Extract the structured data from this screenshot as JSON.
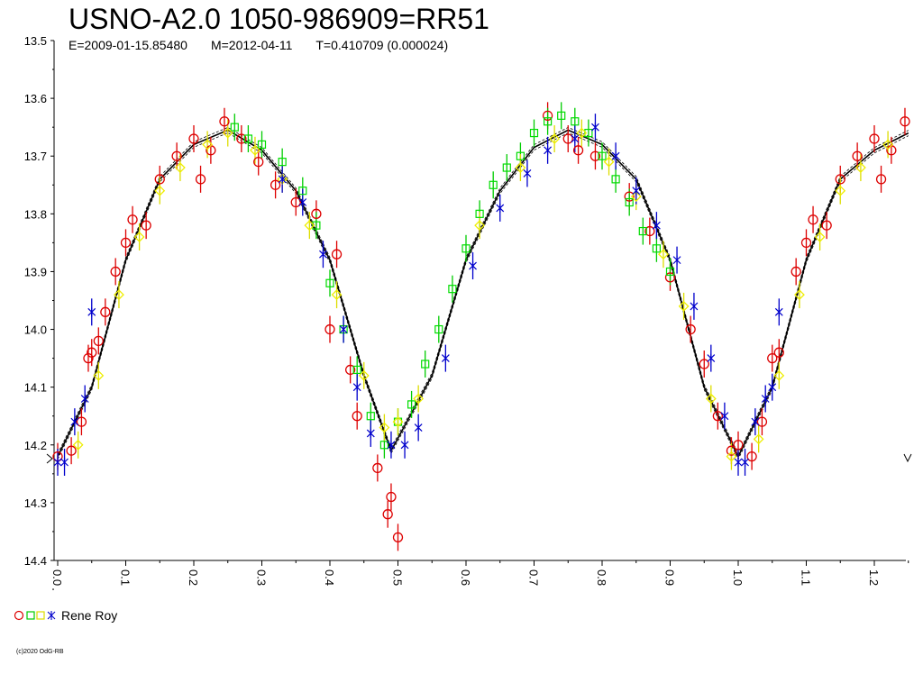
{
  "title": "USNO-A2.0 1050-986909=RR51",
  "subtitle": {
    "epoch": "E=2009-01-15.85480",
    "date": "M=2012-04-11",
    "period": "T=0.410709 (0.000024)"
  },
  "legend": {
    "label": "Rene Roy"
  },
  "copyright": "(c)2020 OdG-RB",
  "colors": {
    "red": "#dd0000",
    "green": "#00dd00",
    "yellow": "#ffff00",
    "blue": "#0000cc",
    "errorbar_red": "#dd0000",
    "errorbar_green": "#00cc00",
    "fit_line": "#000000"
  },
  "markers": {
    "red": "circle",
    "green": "square",
    "yellow": "diamond",
    "blue": "star"
  },
  "chart_data": {
    "type": "scatter",
    "x_ticks": [
      "0.0",
      "0.1",
      "0.2",
      "0.3",
      "0.4",
      "0.5",
      "0.6",
      "0.7",
      "0.8",
      "0.9",
      "1.0",
      "1.1",
      "1.2"
    ],
    "y_ticks": [
      "13.5",
      "13.6",
      "13.7",
      "13.8",
      "13.9",
      "14.0",
      "14.1",
      "14.2",
      "14.3",
      "14.4"
    ],
    "xlim": [
      0.0,
      1.25
    ],
    "ylim": [
      13.5,
      14.4
    ],
    "y_inverted": true,
    "grid": false,
    "fit_curve": {
      "x": [
        0.0,
        0.05,
        0.1,
        0.15,
        0.2,
        0.25,
        0.3,
        0.35,
        0.4,
        0.45,
        0.49,
        0.55,
        0.6,
        0.65,
        0.7,
        0.75,
        0.8,
        0.85,
        0.9,
        0.95,
        1.0,
        1.05,
        1.1,
        1.15,
        1.2,
        1.25
      ],
      "y": [
        14.22,
        14.1,
        13.88,
        13.74,
        13.68,
        13.655,
        13.69,
        13.76,
        13.88,
        14.08,
        14.21,
        14.08,
        13.88,
        13.76,
        13.685,
        13.655,
        13.68,
        13.74,
        13.88,
        14.1,
        14.22,
        14.1,
        13.88,
        13.74,
        13.69,
        13.66
      ]
    },
    "points": {
      "red": {
        "x": [
          0.0,
          0.02,
          0.035,
          0.045,
          0.05,
          0.06,
          0.07,
          0.085,
          0.1,
          0.11,
          0.13,
          0.15,
          0.175,
          0.2,
          0.21,
          0.225,
          0.245,
          0.27,
          0.295,
          0.32,
          0.35,
          0.38,
          0.4,
          0.41,
          0.43,
          0.44,
          0.47,
          0.485,
          0.49,
          0.5,
          0.72,
          0.75,
          0.765,
          0.79,
          0.84,
          0.87,
          0.9,
          0.93,
          0.95,
          0.97,
          0.99,
          1.0,
          1.02,
          1.035,
          1.05,
          1.06,
          1.085,
          1.1,
          1.11,
          1.13,
          1.15,
          1.175,
          1.2,
          1.21,
          1.225,
          1.245
        ],
        "y": [
          14.22,
          14.21,
          14.16,
          14.05,
          14.04,
          14.02,
          13.97,
          13.9,
          13.85,
          13.81,
          13.82,
          13.74,
          13.7,
          13.67,
          13.74,
          13.69,
          13.64,
          13.67,
          13.71,
          13.75,
          13.78,
          13.8,
          14.0,
          13.87,
          14.07,
          14.15,
          14.24,
          14.32,
          14.29,
          14.36,
          13.63,
          13.67,
          13.69,
          13.7,
          13.77,
          13.83,
          13.91,
          14.0,
          14.06,
          14.15,
          14.21,
          14.2,
          14.22,
          14.16,
          14.05,
          14.04,
          13.9,
          13.85,
          13.81,
          13.82,
          13.74,
          13.7,
          13.67,
          13.74,
          13.69,
          13.64
        ]
      },
      "green": {
        "x": [
          0.26,
          0.28,
          0.3,
          0.33,
          0.36,
          0.38,
          0.4,
          0.42,
          0.44,
          0.46,
          0.48,
          0.5,
          0.52,
          0.54,
          0.56,
          0.58,
          0.6,
          0.62,
          0.64,
          0.66,
          0.68,
          0.7,
          0.72,
          0.74,
          0.76,
          0.78,
          0.8,
          0.82,
          0.84,
          0.86,
          0.88,
          0.9
        ],
        "y": [
          13.65,
          13.67,
          13.68,
          13.71,
          13.76,
          13.82,
          13.92,
          14.0,
          14.07,
          14.15,
          14.2,
          14.16,
          14.13,
          14.06,
          14.0,
          13.93,
          13.86,
          13.8,
          13.75,
          13.72,
          13.7,
          13.66,
          13.64,
          13.63,
          13.64,
          13.66,
          13.7,
          13.74,
          13.78,
          13.83,
          13.86,
          13.9
        ]
      },
      "yellow": {
        "x": [
          0.03,
          0.06,
          0.09,
          0.12,
          0.15,
          0.18,
          0.22,
          0.25,
          0.29,
          0.33,
          0.37,
          0.41,
          0.45,
          0.48,
          0.5,
          0.53,
          0.62,
          0.68,
          0.73,
          0.77,
          0.81,
          0.85,
          0.89,
          0.92,
          0.96,
          0.99,
          1.03,
          1.06,
          1.09,
          1.12,
          1.15,
          1.18,
          1.22
        ],
        "y": [
          14.2,
          14.08,
          13.94,
          13.84,
          13.76,
          13.72,
          13.68,
          13.66,
          13.69,
          13.74,
          13.82,
          13.94,
          14.08,
          14.17,
          14.16,
          14.12,
          13.82,
          13.72,
          13.67,
          13.66,
          13.71,
          13.77,
          13.87,
          13.96,
          14.12,
          14.22,
          14.19,
          14.08,
          13.94,
          13.84,
          13.76,
          13.72,
          13.68
        ]
      },
      "blue": {
        "x": [
          0.0,
          0.01,
          0.025,
          0.04,
          0.05,
          0.33,
          0.36,
          0.39,
          0.42,
          0.44,
          0.46,
          0.49,
          0.51,
          0.53,
          0.57,
          0.61,
          0.65,
          0.69,
          0.72,
          0.76,
          0.79,
          0.82,
          0.85,
          0.88,
          0.91,
          0.935,
          0.96,
          0.98,
          1.0,
          1.01,
          1.025,
          1.04,
          1.05,
          1.06
        ],
        "y": [
          14.23,
          14.23,
          14.16,
          14.12,
          13.97,
          13.74,
          13.78,
          13.87,
          14.0,
          14.1,
          14.18,
          14.2,
          14.2,
          14.17,
          14.05,
          13.89,
          13.79,
          13.73,
          13.69,
          13.67,
          13.65,
          13.7,
          13.76,
          13.82,
          13.88,
          13.96,
          14.05,
          14.15,
          14.23,
          14.23,
          14.16,
          14.12,
          14.1,
          13.97
        ]
      }
    }
  }
}
